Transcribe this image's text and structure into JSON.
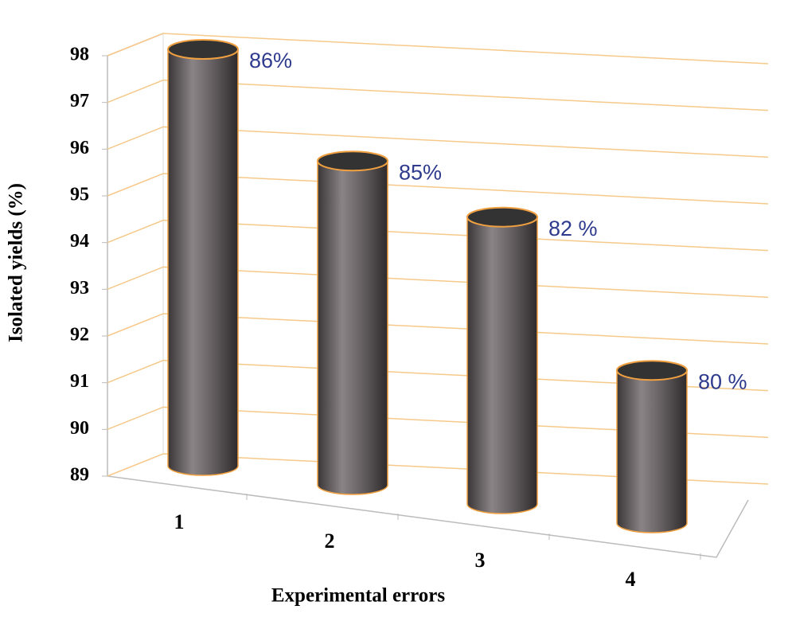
{
  "chart_data": {
    "type": "cylinder",
    "x_label": "Experimental errors",
    "y_label": "Isolated yields (%)",
    "categories": [
      "1",
      "2",
      "3",
      "4"
    ],
    "values": [
      98,
      96,
      95.2,
      92.3
    ],
    "annotations": [
      "86%",
      "85%",
      "82 %",
      "80 %"
    ],
    "color": "#5a5456",
    "edge_color": "#f0a040",
    "annotation_color": "#2e3a8c",
    "ylim": [
      89,
      98
    ],
    "yticks": [
      89,
      90,
      91,
      92,
      93,
      94,
      95,
      96,
      97,
      98
    ],
    "grid": true
  }
}
